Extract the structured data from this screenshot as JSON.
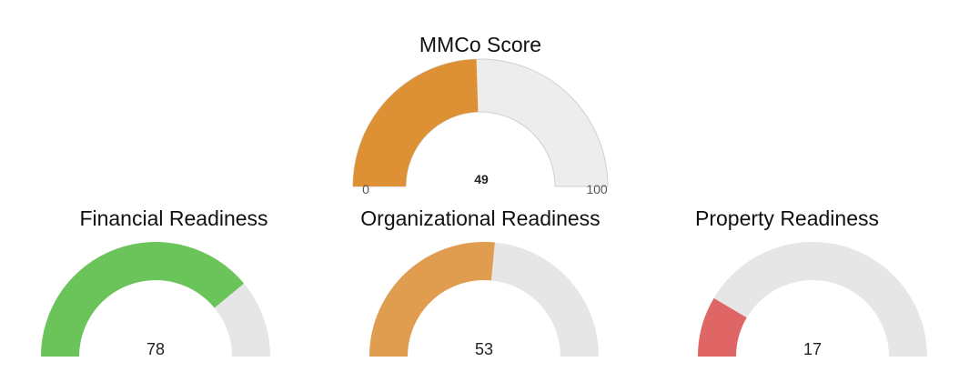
{
  "gauges": [
    {
      "title": "MMCo Score",
      "value": 49,
      "value_label": "49",
      "min_label": "0",
      "max_label": "100",
      "min": 0,
      "max": 100,
      "fill_color": "#de9134",
      "track_color": "#ededed"
    },
    {
      "title": "Financial Readiness",
      "value": 78,
      "value_label": "78",
      "min": 0,
      "max": 100,
      "fill_color": "#6bc459",
      "track_color": "#e6e6e6"
    },
    {
      "title": "Organizational Readiness",
      "value": 53,
      "value_label": "53",
      "min": 0,
      "max": 100,
      "fill_color": "#e09c4f",
      "track_color": "#e6e6e6"
    },
    {
      "title": "Property Readiness",
      "value": 17,
      "value_label": "17",
      "min": 0,
      "max": 100,
      "fill_color": "#e06565",
      "track_color": "#e6e6e6"
    }
  ]
}
